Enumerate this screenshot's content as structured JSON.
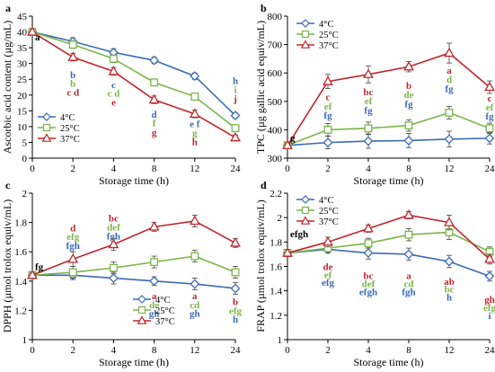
{
  "chart_data": [
    {
      "panel": "a",
      "type": "line",
      "xlabel": "Storage time (h)",
      "ylabel": "Ascorbic acid content (µg/mL)",
      "categories": [
        "0",
        "2",
        "4",
        "8",
        "12",
        "24"
      ],
      "ylim": [
        0,
        45
      ],
      "yticks": [
        "0",
        "5",
        "10",
        "15",
        "20",
        "25",
        "30",
        "35",
        "40",
        "45"
      ],
      "legend_position": "bottom-left",
      "series": [
        {
          "name": "4°C",
          "color": "#3b6bb5",
          "marker": "diamond",
          "values": [
            40,
            37,
            33.5,
            31,
            26,
            13.5
          ],
          "errors": [
            1,
            1.2,
            1.2,
            1,
            1,
            0.8
          ]
        },
        {
          "name": "25°C",
          "color": "#7ab648",
          "marker": "square",
          "values": [
            40,
            36,
            31.5,
            24,
            19.5,
            9.5
          ],
          "errors": [
            1,
            1.2,
            1.2,
            1,
            1,
            0.8
          ]
        },
        {
          "name": "37°C",
          "color": "#c0262c",
          "marker": "triangle",
          "values": [
            40,
            32,
            27.5,
            18.5,
            14,
            6.5
          ],
          "errors": [
            1,
            1.2,
            1.2,
            1.2,
            1.2,
            0.8
          ]
        }
      ],
      "annotations": [
        {
          "x": "0",
          "text": "a",
          "color": "#000000",
          "level": 38.5
        },
        {
          "x": "2",
          "text": "b",
          "color": "#3b6bb5",
          "level": 26.5
        },
        {
          "x": "2",
          "text": "b",
          "color": "#7ab648",
          "level": 23.8
        },
        {
          "x": "2",
          "text": "c d",
          "color": "#c0262c",
          "level": 21
        },
        {
          "x": "4",
          "text": "c",
          "color": "#3b6bb5",
          "level": 23.3
        },
        {
          "x": "4",
          "text": "c d",
          "color": "#7ab648",
          "level": 20.6
        },
        {
          "x": "4",
          "text": "e",
          "color": "#c0262c",
          "level": 17.8
        },
        {
          "x": "8",
          "text": "d",
          "color": "#3b6bb5",
          "level": 14
        },
        {
          "x": "8",
          "text": "f",
          "color": "#7ab648",
          "level": 11.2
        },
        {
          "x": "8",
          "text": "g",
          "color": "#c0262c",
          "level": 8.3
        },
        {
          "x": "12",
          "text": "e f",
          "color": "#3b6bb5",
          "level": 11
        },
        {
          "x": "12",
          "text": "g",
          "color": "#7ab648",
          "level": 8.1
        },
        {
          "x": "12",
          "text": "h",
          "color": "#c0262c",
          "level": 5.3
        },
        {
          "x": "24",
          "text": "h",
          "color": "#3b6bb5",
          "level": 24.6
        },
        {
          "x": "24",
          "text": "i",
          "color": "#7ab648",
          "level": 21.8
        },
        {
          "x": "24",
          "text": "j",
          "color": "#c0262c",
          "level": 19
        }
      ]
    },
    {
      "panel": "b",
      "type": "line",
      "xlabel": "Storage time (h)",
      "ylabel": "TPC (µg gallic acid equiv/mL)",
      "categories": [
        "0",
        "2",
        "4",
        "8",
        "12",
        "24"
      ],
      "ylim": [
        300,
        800
      ],
      "yticks": [
        "300",
        "400",
        "500",
        "600",
        "700",
        "800"
      ],
      "legend_position": "top-left",
      "series": [
        {
          "name": "4°C",
          "color": "#3b6bb5",
          "marker": "diamond",
          "values": [
            345,
            355,
            360,
            362,
            367,
            370
          ],
          "errors": [
            8,
            22,
            25,
            25,
            28,
            20
          ]
        },
        {
          "name": "25°C",
          "color": "#7ab648",
          "marker": "square",
          "values": [
            345,
            400,
            405,
            415,
            460,
            405
          ],
          "errors": [
            8,
            22,
            22,
            20,
            22,
            18
          ]
        },
        {
          "name": "37°C",
          "color": "#c0262c",
          "marker": "triangle",
          "values": [
            345,
            570,
            595,
            622,
            670,
            550
          ],
          "errors": [
            8,
            25,
            30,
            18,
            35,
            22
          ]
        }
      ],
      "annotations": [
        {
          "x": "0",
          "text": "g",
          "color": "#000000",
          "level": 372
        },
        {
          "x": "2",
          "text": "c",
          "color": "#c0262c",
          "level": 516
        },
        {
          "x": "2",
          "text": "ef",
          "color": "#7ab648",
          "level": 484
        },
        {
          "x": "2",
          "text": "fg",
          "color": "#3b6bb5",
          "level": 452
        },
        {
          "x": "4",
          "text": "bc",
          "color": "#c0262c",
          "level": 534
        },
        {
          "x": "4",
          "text": "ef",
          "color": "#7ab648",
          "level": 502
        },
        {
          "x": "4",
          "text": "fg",
          "color": "#3b6bb5",
          "level": 470
        },
        {
          "x": "8",
          "text": "b",
          "color": "#c0262c",
          "level": 556
        },
        {
          "x": "8",
          "text": "de",
          "color": "#7ab648",
          "level": 524
        },
        {
          "x": "8",
          "text": "fg",
          "color": "#3b6bb5",
          "level": 492
        },
        {
          "x": "12",
          "text": "a",
          "color": "#c0262c",
          "level": 610
        },
        {
          "x": "12",
          "text": "d",
          "color": "#7ab648",
          "level": 578
        },
        {
          "x": "12",
          "text": "fg",
          "color": "#3b6bb5",
          "level": 546
        },
        {
          "x": "24",
          "text": "c",
          "color": "#c0262c",
          "level": 512
        },
        {
          "x": "24",
          "text": "ef",
          "color": "#7ab648",
          "level": 480
        },
        {
          "x": "24",
          "text": "fg",
          "color": "#3b6bb5",
          "level": 448
        }
      ]
    },
    {
      "panel": "c",
      "type": "line",
      "xlabel": "Storage time (h)",
      "ylabel": "DPPH (µmol trolox equiv/mL)",
      "categories": [
        "0",
        "2",
        "4",
        "8",
        "12",
        "24"
      ],
      "ylim": [
        1,
        2
      ],
      "yticks": [
        "1",
        "1.2",
        "1.4",
        "1.6",
        "1.8",
        "2"
      ],
      "legend_position": "bottom-right",
      "series": [
        {
          "name": "4°C",
          "color": "#3b6bb5",
          "marker": "diamond",
          "values": [
            1.44,
            1.44,
            1.42,
            1.4,
            1.38,
            1.35
          ],
          "errors": [
            0.02,
            0.03,
            0.04,
            0.03,
            0.04,
            0.04
          ]
        },
        {
          "name": "25°C",
          "color": "#7ab648",
          "marker": "square",
          "values": [
            1.44,
            1.46,
            1.49,
            1.53,
            1.57,
            1.46
          ],
          "errors": [
            0.02,
            0.04,
            0.04,
            0.04,
            0.04,
            0.04
          ]
        },
        {
          "name": "37°C",
          "color": "#c0262c",
          "marker": "triangle",
          "values": [
            1.44,
            1.55,
            1.65,
            1.77,
            1.81,
            1.66
          ],
          "errors": [
            0.02,
            0.05,
            0.04,
            0.03,
            0.04,
            0.03
          ]
        }
      ],
      "annotations": [
        {
          "x": "0",
          "text": "fg",
          "color": "#000000",
          "level": 1.5
        },
        {
          "x": "2",
          "text": "d",
          "color": "#c0262c",
          "level": 1.765
        },
        {
          "x": "2",
          "text": "efg",
          "color": "#7ab648",
          "level": 1.705
        },
        {
          "x": "2",
          "text": "fgh",
          "color": "#3b6bb5",
          "level": 1.645
        },
        {
          "x": "4",
          "text": "bc",
          "color": "#c0262c",
          "level": 1.83
        },
        {
          "x": "4",
          "text": "def",
          "color": "#7ab648",
          "level": 1.77
        },
        {
          "x": "4",
          "text": "fgh",
          "color": "#3b6bb5",
          "level": 1.71
        },
        {
          "x": "8",
          "text": "a",
          "color": "#c0262c",
          "level": 1.3
        },
        {
          "x": "8",
          "text": "de",
          "color": "#7ab648",
          "level": 1.24
        },
        {
          "x": "8",
          "text": "gh",
          "color": "#3b6bb5",
          "level": 1.18
        },
        {
          "x": "12",
          "text": "a",
          "color": "#c0262c",
          "level": 1.3
        },
        {
          "x": "12",
          "text": "cd",
          "color": "#7ab648",
          "level": 1.24
        },
        {
          "x": "12",
          "text": "gh",
          "color": "#3b6bb5",
          "level": 1.18
        },
        {
          "x": "24",
          "text": "b",
          "color": "#c0262c",
          "level": 1.26
        },
        {
          "x": "24",
          "text": "efg",
          "color": "#7ab648",
          "level": 1.2
        },
        {
          "x": "24",
          "text": "h",
          "color": "#3b6bb5",
          "level": 1.14
        }
      ]
    },
    {
      "panel": "d",
      "type": "line",
      "xlabel": "Storage time (h)",
      "ylabel": "FRAP (µmol trolox equiv/mL)",
      "categories": [
        "0",
        "2",
        "4",
        "8",
        "12",
        "24"
      ],
      "ylim": [
        1,
        2.2
      ],
      "yticks": [
        "1",
        "1.2",
        "1.4",
        "1.6",
        "1.8",
        "2",
        "2.2"
      ],
      "legend_position": "top-left",
      "series": [
        {
          "name": "4°C",
          "color": "#3b6bb5",
          "marker": "diamond",
          "values": [
            1.71,
            1.74,
            1.71,
            1.7,
            1.64,
            1.52
          ],
          "errors": [
            0.03,
            0.03,
            0.05,
            0.05,
            0.05,
            0.04
          ]
        },
        {
          "name": "25°C",
          "color": "#7ab648",
          "marker": "square",
          "values": [
            1.71,
            1.75,
            1.79,
            1.86,
            1.88,
            1.72
          ],
          "errors": [
            0.03,
            0.04,
            0.04,
            0.05,
            0.06,
            0.04
          ]
        },
        {
          "name": "37°C",
          "color": "#c0262c",
          "marker": "triangle",
          "values": [
            1.71,
            1.8,
            1.91,
            2.02,
            1.96,
            1.66
          ],
          "errors": [
            0.03,
            0.04,
            0.03,
            0.03,
            0.06,
            0.04
          ]
        }
      ],
      "annotations": [
        {
          "x": "0",
          "text": "efgh",
          "color": "#000000",
          "level": 1.87
        },
        {
          "x": "2",
          "text": "de",
          "color": "#c0262c",
          "level": 1.6
        },
        {
          "x": "2",
          "text": "ef",
          "color": "#7ab648",
          "level": 1.535
        },
        {
          "x": "2",
          "text": "efg",
          "color": "#3b6bb5",
          "level": 1.47
        },
        {
          "x": "4",
          "text": "bc",
          "color": "#c0262c",
          "level": 1.525
        },
        {
          "x": "4",
          "text": "def",
          "color": "#7ab648",
          "level": 1.46
        },
        {
          "x": "4",
          "text": "efgh",
          "color": "#3b6bb5",
          "level": 1.395
        },
        {
          "x": "8",
          "text": "a",
          "color": "#c0262c",
          "level": 1.525
        },
        {
          "x": "8",
          "text": "cd",
          "color": "#7ab648",
          "level": 1.46
        },
        {
          "x": "8",
          "text": "fgh",
          "color": "#3b6bb5",
          "level": 1.395
        },
        {
          "x": "12",
          "text": "ab",
          "color": "#c0262c",
          "level": 1.48
        },
        {
          "x": "12",
          "text": "bc",
          "color": "#7ab648",
          "level": 1.415
        },
        {
          "x": "12",
          "text": "h",
          "color": "#3b6bb5",
          "level": 1.35
        },
        {
          "x": "24",
          "text": "gh",
          "color": "#c0262c",
          "level": 1.33
        },
        {
          "x": "24",
          "text": "efg",
          "color": "#7ab648",
          "level": 1.265
        },
        {
          "x": "24",
          "text": "i",
          "color": "#3b6bb5",
          "level": 1.2
        }
      ]
    }
  ]
}
